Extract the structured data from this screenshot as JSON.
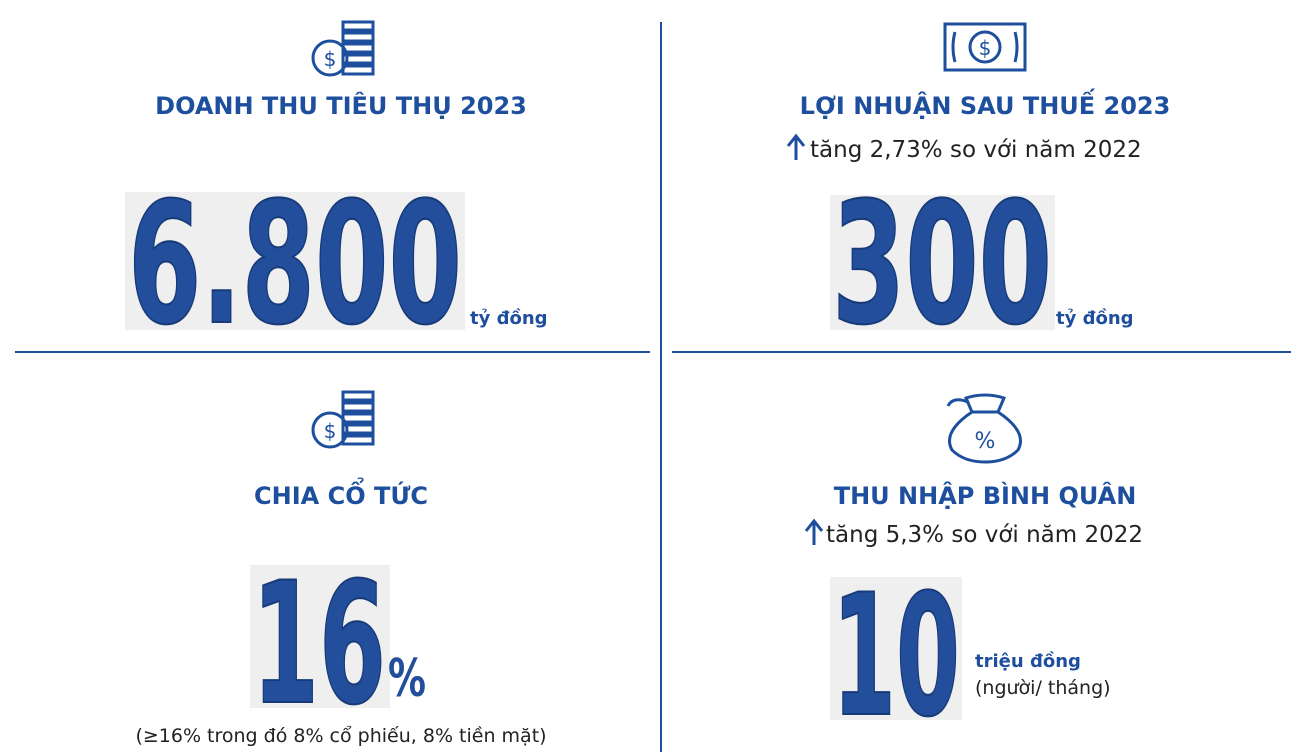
{
  "cards": [
    {
      "title": "DOANH THU TIÊU THỤ 2023",
      "value": "6.800",
      "unit": "tỷ đồng"
    },
    {
      "title": "LỢI NHUẬN SAU THUẾ 2023",
      "note": "tăng 2,73% so với năm 2022",
      "value": "300",
      "unit": "tỷ đồng"
    },
    {
      "title": "CHIA CỔ TỨC",
      "value": "16",
      "unit": "%",
      "footnote": "(≥16% trong đó 8% cổ phiếu, 8% tiền mặt)"
    },
    {
      "title": "THU NHẬP BÌNH QUÂN",
      "note": "tăng 5,3% so với năm 2022",
      "value": "10",
      "unit": "triệu đồng",
      "unit_note": "(người/ tháng)"
    }
  ]
}
